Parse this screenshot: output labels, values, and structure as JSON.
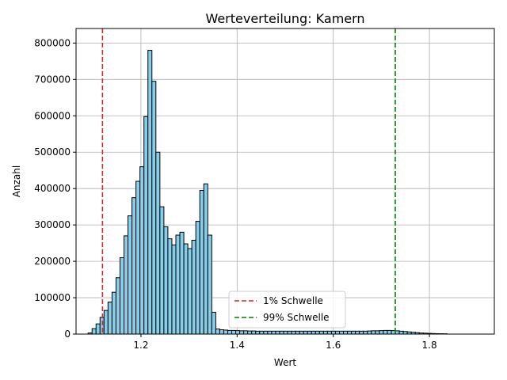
{
  "chart_data": {
    "type": "bar",
    "title": "Werteverteilung: Kamern",
    "xlabel": "Wert",
    "ylabel": "Anzahl",
    "xlim": [
      1.065,
      1.935
    ],
    "ylim": [
      0,
      840000
    ],
    "x_ticks": [
      1.2,
      1.4,
      1.6,
      1.8
    ],
    "x_tick_labels": [
      "1.2",
      "1.4",
      "1.6",
      "1.8"
    ],
    "y_ticks": [
      0,
      100000,
      200000,
      300000,
      400000,
      500000,
      600000,
      700000,
      800000
    ],
    "y_tick_labels": [
      "0",
      "100000",
      "200000",
      "300000",
      "400000",
      "500000",
      "600000",
      "700000",
      "800000"
    ],
    "grid": true,
    "bar_color": "#87CEEB",
    "bar_edge_color": "#000000",
    "bin_start": 1.09,
    "bin_width": 0.0083,
    "values": [
      3000,
      15000,
      28000,
      46000,
      65000,
      88000,
      115000,
      155000,
      210000,
      270000,
      325000,
      375000,
      420000,
      460000,
      598000,
      780000,
      695000,
      500000,
      350000,
      295000,
      262000,
      245000,
      272000,
      280000,
      248000,
      235000,
      258000,
      310000,
      395000,
      413000,
      272000,
      60000,
      14000,
      12000,
      11000,
      10000,
      10000,
      9500,
      9000,
      9000,
      8500,
      8500,
      8000,
      8000,
      8000,
      8000,
      8000,
      8000,
      8000,
      8000,
      8000,
      8000,
      8000,
      8000,
      8000,
      8000,
      8000,
      8000,
      8000,
      8000,
      8000,
      8000,
      8000,
      8000,
      8000,
      8000,
      8000,
      8000,
      8000,
      8000,
      8500,
      9000,
      9000,
      9500,
      10000,
      10000,
      9500,
      9000,
      8000,
      7000,
      6000,
      5000,
      4000,
      3000,
      2500,
      2000,
      1500,
      1200,
      1000,
      800
    ],
    "thresholds": [
      {
        "label": "1% Schwelle",
        "x": 1.12,
        "color": "#d62728"
      },
      {
        "label": "99% Schwelle",
        "x": 1.729,
        "color": "#008000"
      }
    ],
    "legend_position": "lower center"
  }
}
